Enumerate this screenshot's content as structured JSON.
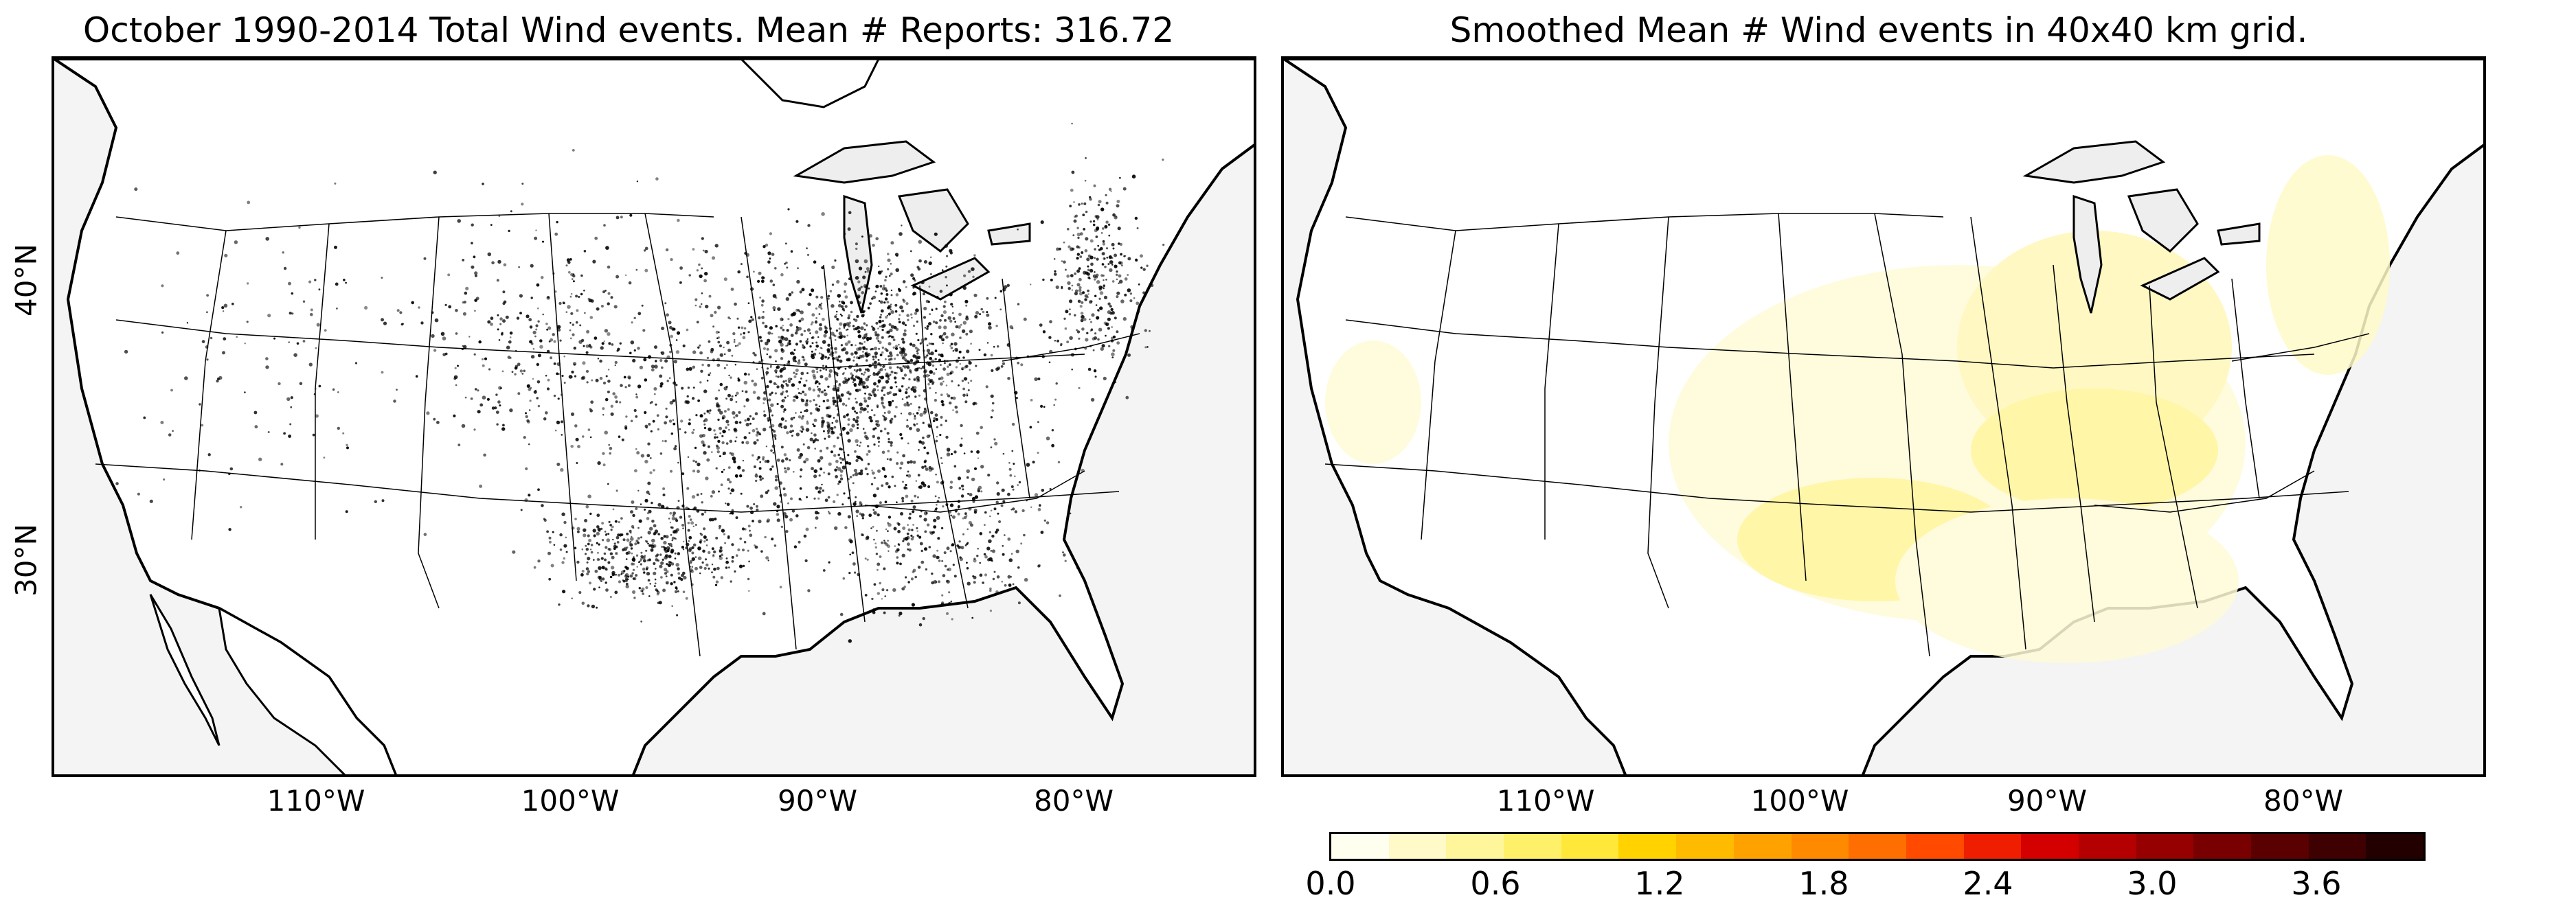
{
  "left_panel": {
    "title": "October 1990-2014 Total Wind events. Mean # Reports: 316.72"
  },
  "right_panel": {
    "title": "Smoothed Mean # Wind events in 40x40 km grid."
  },
  "lon_labels": [
    "110°W",
    "100°W",
    "90°W",
    "80°W"
  ],
  "lat_labels": [
    "40°N",
    "30°N"
  ],
  "colorbar": {
    "ticks": [
      "0.0",
      "0.6",
      "1.2",
      "1.8",
      "2.4",
      "3.0",
      "3.6"
    ],
    "colors": [
      "#fffff0",
      "#fffac8",
      "#fff59a",
      "#fff06a",
      "#ffe83a",
      "#ffd200",
      "#ffbb00",
      "#ffa200",
      "#ff8a00",
      "#ff6e00",
      "#ff4a00",
      "#f01e00",
      "#d40000",
      "#b40000",
      "#960000",
      "#780000",
      "#5a0000",
      "#3e0000",
      "#220000"
    ],
    "min": 0.0,
    "max": 4.0
  },
  "map": {
    "background_color": "#f4f4f4",
    "land_color": "#ffffff",
    "report_dot_color": "#000000"
  }
}
